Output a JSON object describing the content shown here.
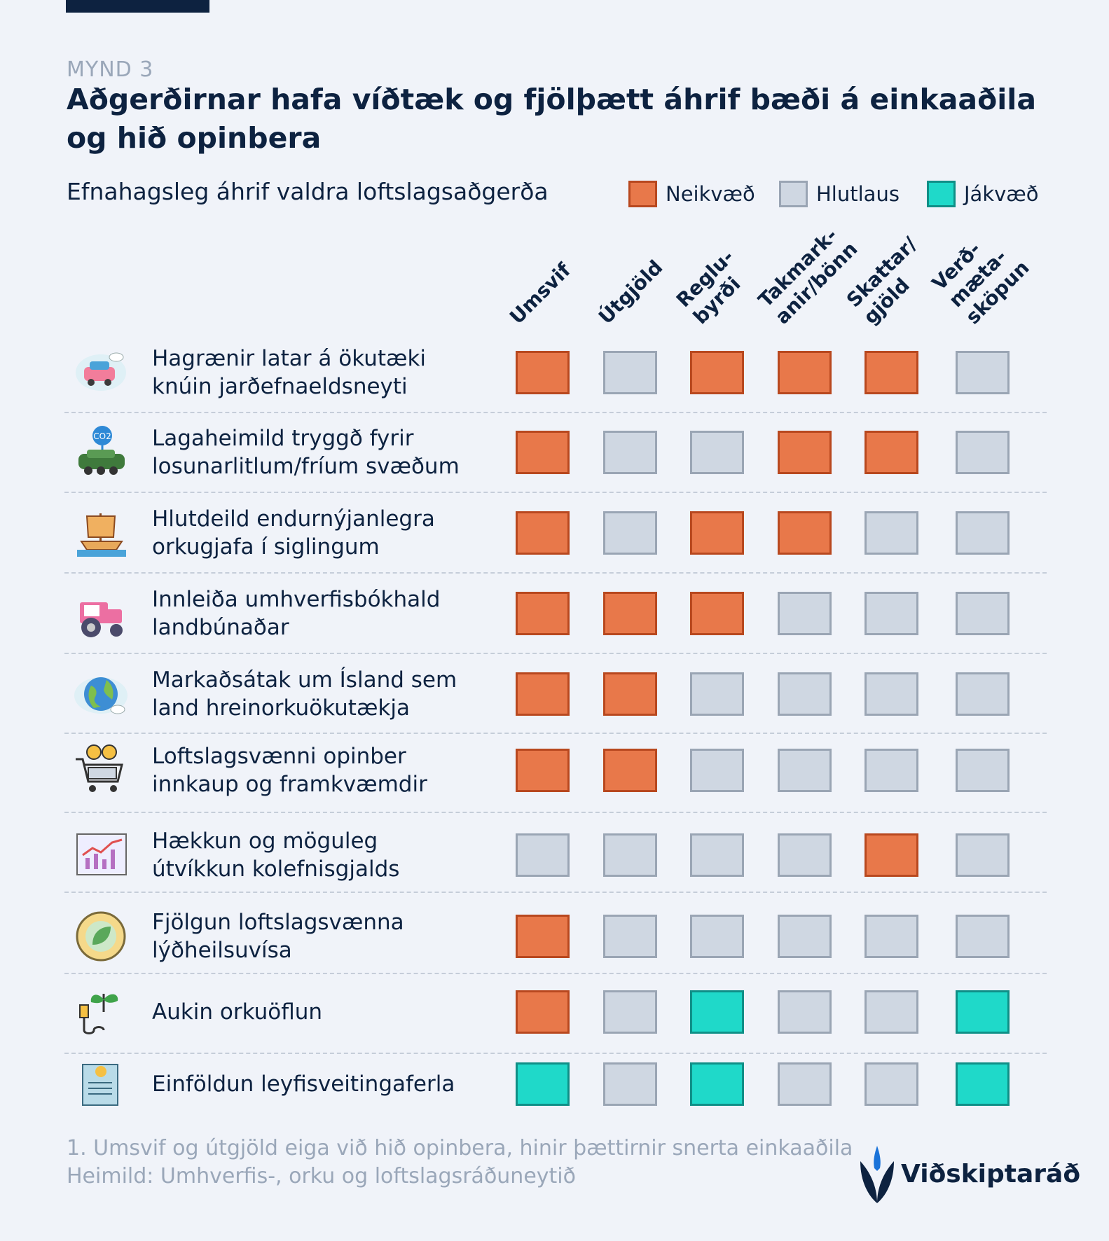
{
  "header": {
    "figure_label": "MYND 3",
    "title": "Aðgerðirnar hafa víðtæk og fjölþætt áhrif bæði á einkaaðila og hið opinbera",
    "subtitle": "Efnahagsleg áhrif valdra loftslagsaðgerða"
  },
  "legend": [
    {
      "label": "Neikvæð",
      "color": "#e8784a",
      "border": "#b8481f"
    },
    {
      "label": "Hlutlaus",
      "color": "#cfd7e2",
      "border": "#9aa5b4"
    },
    {
      "label": "Jákvæð",
      "color": "#1fd9c9",
      "border": "#0f8f87"
    }
  ],
  "chart_data": {
    "type": "table",
    "columns": [
      [
        "Umsvif"
      ],
      [
        "Útgjöld"
      ],
      [
        "Reglu-",
        "byrði"
      ],
      [
        "Takmark-",
        "anir/bönn"
      ],
      [
        "Skattar/",
        "gjöld"
      ],
      [
        "Verð-",
        "mæta-",
        "sköpun"
      ]
    ],
    "rows": [
      {
        "label": [
          "Hagrænir latar á ökutæki",
          "knúin jarðefnaeldsneyti"
        ],
        "icon": "car-cloud-icon",
        "values": [
          "Neikvæð",
          "Hlutlaus",
          "Neikvæð",
          "Neikvæð",
          "Neikvæð",
          "Hlutlaus"
        ]
      },
      {
        "label": [
          "Lagaheimild tryggð fyrir",
          "losunarlitlum/fríum svæðum"
        ],
        "icon": "co2-car-icon",
        "values": [
          "Neikvæð",
          "Hlutlaus",
          "Hlutlaus",
          "Neikvæð",
          "Neikvæð",
          "Hlutlaus"
        ]
      },
      {
        "label": [
          "Hlutdeild endurnýjanlegra",
          "orkugjafa í siglingum"
        ],
        "icon": "ship-icon",
        "values": [
          "Neikvæð",
          "Hlutlaus",
          "Neikvæð",
          "Neikvæð",
          "Hlutlaus",
          "Hlutlaus"
        ]
      },
      {
        "label": [
          "Innleiða umhverfisbókhald",
          "landbúnaðar"
        ],
        "icon": "tractor-icon",
        "values": [
          "Neikvæð",
          "Neikvæð",
          "Neikvæð",
          "Hlutlaus",
          "Hlutlaus",
          "Hlutlaus"
        ]
      },
      {
        "label": [
          "Markaðsátak um Ísland sem",
          "land hreinorkuökutækja"
        ],
        "icon": "globe-icon",
        "values": [
          "Neikvæð",
          "Neikvæð",
          "Hlutlaus",
          "Hlutlaus",
          "Hlutlaus",
          "Hlutlaus"
        ]
      },
      {
        "label": [
          "Loftslagsvænni opinber",
          "innkaup og framkvæmdir"
        ],
        "icon": "shopping-cart-icon",
        "values": [
          "Neikvæð",
          "Neikvæð",
          "Hlutlaus",
          "Hlutlaus",
          "Hlutlaus",
          "Hlutlaus"
        ]
      },
      {
        "label": [
          "Hækkun og möguleg",
          "útvíkkun kolefnisgjalds"
        ],
        "icon": "chart-icon",
        "values": [
          "Hlutlaus",
          "Hlutlaus",
          "Hlutlaus",
          "Hlutlaus",
          "Neikvæð",
          "Hlutlaus"
        ]
      },
      {
        "label": [
          "Fjölgun loftslagsvænna",
          "lýðheilsuvísa"
        ],
        "icon": "leaf-icon",
        "values": [
          "Neikvæð",
          "Hlutlaus",
          "Hlutlaus",
          "Hlutlaus",
          "Hlutlaus",
          "Hlutlaus"
        ]
      },
      {
        "label": [
          "Aukin orkuöflun"
        ],
        "icon": "plug-plant-icon",
        "values": [
          "Neikvæð",
          "Hlutlaus",
          "Jákvæð",
          "Hlutlaus",
          "Hlutlaus",
          "Jákvæð"
        ]
      },
      {
        "label": [
          "Einföldun leyfisveitingaferla"
        ],
        "icon": "document-icon",
        "values": [
          "Jákvæð",
          "Hlutlaus",
          "Jákvæð",
          "Hlutlaus",
          "Hlutlaus",
          "Jákvæð"
        ]
      }
    ]
  },
  "footnotes": [
    "1. Umsvif og útgjöld eiga við hið opinbera, hinir þættirnir snerta einkaaðila",
    "Heimild: Umhverfis-, orku og loftslagsráðuneytið"
  ],
  "logo": {
    "text": "Viðskiptaráð"
  }
}
